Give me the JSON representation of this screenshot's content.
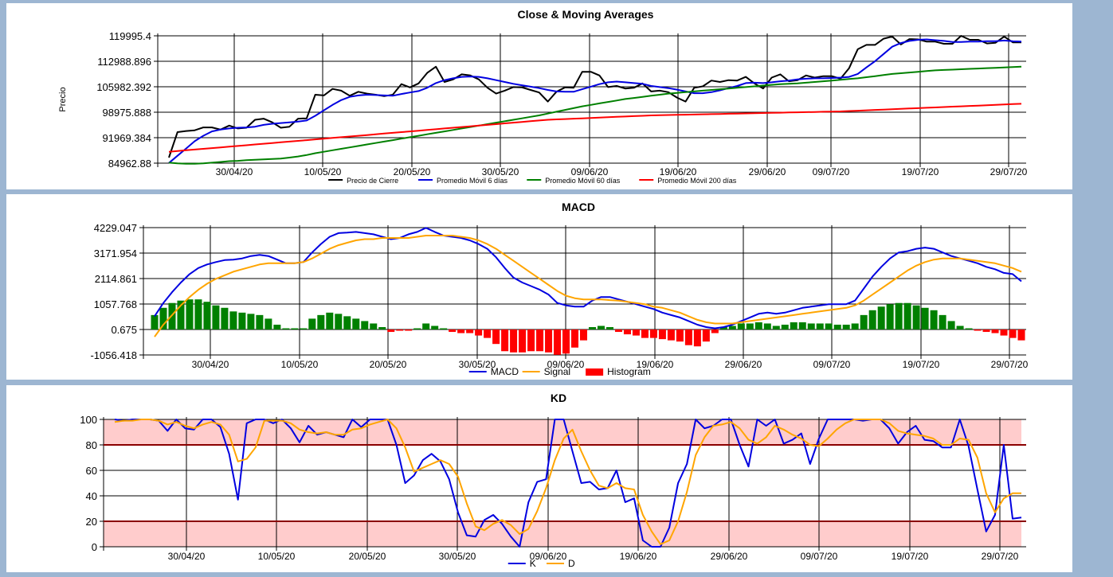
{
  "chart_data": [
    {
      "type": "line",
      "title": "Close &  Moving Averages",
      "ylabel": "Precio",
      "y_ticks": [
        "119995.4",
        "112988.896",
        "105982.392",
        "98975.888",
        "91969.384",
        "84962.88"
      ],
      "ylim": [
        84962.88,
        119995.4
      ],
      "x_ticks": [
        "30/04/20",
        "10/05/20",
        "20/05/20",
        "30/05/20",
        "09/06/20",
        "19/06/20",
        "29/06/20",
        "09/07/20",
        "19/07/20",
        "29/07/20"
      ],
      "legend_position": "bottom",
      "grid": true,
      "series": [
        {
          "name": "Precio de Cierre",
          "color": "#000000",
          "values": [
            86500,
            93500,
            93800,
            94000,
            94800,
            94800,
            94200,
            95300,
            94500,
            94700,
            96900,
            97200,
            96200,
            94700,
            95000,
            97200,
            97300,
            103800,
            103600,
            105400,
            104900,
            103500,
            104600,
            104100,
            103800,
            103400,
            103800,
            106700,
            105800,
            106900,
            109800,
            111500,
            107300,
            108000,
            109400,
            109100,
            108000,
            105700,
            104100,
            104900,
            105900,
            105800,
            105100,
            104400,
            101900,
            104600,
            105800,
            105700,
            110100,
            110100,
            109100,
            105900,
            106200,
            105500,
            105700,
            106900,
            104700,
            104900,
            104500,
            103000,
            101900,
            105700,
            106100,
            107700,
            107300,
            107800,
            107700,
            108700,
            106900,
            105500,
            108500,
            109400,
            107500,
            107800,
            109100,
            108500,
            108900,
            108900,
            108200,
            111100,
            116300,
            117500,
            117500,
            119200,
            119800,
            117600,
            119100,
            119000,
            118400,
            118400,
            117800,
            117800,
            120000,
            118900,
            118900,
            117900,
            118100,
            119800,
            118200,
            118200
          ]
        },
        {
          "name": "Promedio Móvil 6 días",
          "color": "#0000e0",
          "values": [
            85000,
            87000,
            89000,
            91000,
            92500,
            93700,
            94200,
            94500,
            94700,
            94800,
            95000,
            95500,
            95800,
            96000,
            96200,
            96400,
            96700,
            98000,
            99500,
            101000,
            102300,
            103200,
            103600,
            103800,
            103700,
            103600,
            103500,
            104000,
            104400,
            104800,
            105700,
            107000,
            107800,
            108300,
            108700,
            108800,
            108700,
            108300,
            107800,
            107300,
            106800,
            106400,
            106000,
            105600,
            105100,
            104700,
            104600,
            104600,
            105300,
            106000,
            106700,
            107200,
            107400,
            107200,
            107000,
            106800,
            106200,
            105900,
            105600,
            105200,
            104700,
            104200,
            104200,
            104500,
            105000,
            105600,
            106200,
            107000,
            107100,
            107000,
            107200,
            107500,
            107700,
            108000,
            108200,
            108300,
            108300,
            108400,
            108500,
            108700,
            109500,
            111300,
            113000,
            115000,
            117000,
            118000,
            118600,
            118900,
            119000,
            118800,
            118600,
            118300,
            118300,
            118400,
            118400,
            118500,
            118500,
            118700,
            118500,
            118400
          ]
        },
        {
          "name": "Promedio Móvil 60 días",
          "color": "#008000",
          "values": [
            85100,
            84900,
            84800,
            84800,
            84900,
            85100,
            85300,
            85500,
            85600,
            85800,
            85900,
            86000,
            86100,
            86200,
            86500,
            86800,
            87200,
            87700,
            88100,
            88500,
            88900,
            89300,
            89700,
            90100,
            90500,
            90900,
            91300,
            91700,
            92100,
            92500,
            92900,
            93300,
            93700,
            94100,
            94500,
            94900,
            95300,
            95700,
            96100,
            96500,
            96900,
            97300,
            97700,
            98100,
            98600,
            99100,
            99600,
            100100,
            100600,
            101000,
            101400,
            101800,
            102200,
            102600,
            102900,
            103200,
            103500,
            103800,
            104100,
            104300,
            104500,
            104700,
            104900,
            105100,
            105300,
            105500,
            105700,
            105900,
            106100,
            106300,
            106500,
            106700,
            106800,
            106900,
            107100,
            107300,
            107500,
            107700,
            107900,
            108100,
            108300,
            108600,
            108900,
            109200,
            109500,
            109700,
            109900,
            110100,
            110300,
            110500,
            110600,
            110700,
            110800,
            110900,
            111000,
            111100,
            111200,
            111300,
            111400,
            111500
          ]
        },
        {
          "name": "Promedio Móvil 200 días",
          "color": "#ff0000",
          "values": [
            88100,
            88300,
            88500,
            88700,
            88900,
            89100,
            89300,
            89500,
            89700,
            89900,
            90100,
            90300,
            90500,
            90700,
            90900,
            91100,
            91300,
            91500,
            91700,
            91900,
            92100,
            92300,
            92500,
            92700,
            92900,
            93100,
            93300,
            93500,
            93700,
            93900,
            94100,
            94300,
            94500,
            94700,
            94900,
            95100,
            95300,
            95500,
            95700,
            95900,
            96100,
            96300,
            96500,
            96700,
            96900,
            97000,
            97100,
            97200,
            97300,
            97400,
            97500,
            97600,
            97700,
            97800,
            97900,
            98000,
            98100,
            98150,
            98200,
            98250,
            98300,
            98350,
            98400,
            98450,
            98500,
            98550,
            98600,
            98650,
            98700,
            98750,
            98800,
            98850,
            98900,
            98950,
            99000,
            99050,
            99100,
            99150,
            99200,
            99300,
            99400,
            99500,
            99600,
            99700,
            99800,
            99900,
            100000,
            100100,
            100200,
            100300,
            100400,
            100500,
            100600,
            100700,
            100800,
            100900,
            101000,
            101100,
            101200,
            101300
          ]
        }
      ]
    },
    {
      "type": "line",
      "title": "MACD",
      "y_ticks": [
        "4229.047",
        "3171.954",
        "2114.861",
        "1057.768",
        "0.675",
        "-1056.418"
      ],
      "ylim": [
        -1056.418,
        4229.047
      ],
      "x_ticks": [
        "30/04/20",
        "10/05/20",
        "20/05/20",
        "30/05/20",
        "09/06/20",
        "19/06/20",
        "29/06/20",
        "09/07/20",
        "19/07/20",
        "29/07/20"
      ],
      "legend_position": "bottom",
      "grid": true,
      "series": [
        {
          "name": "MACD",
          "color": "#0000e0",
          "values": [
            550,
            1100,
            1550,
            1950,
            2300,
            2550,
            2700,
            2800,
            2880,
            2900,
            2950,
            3050,
            3100,
            3050,
            2900,
            2750,
            2750,
            2800,
            3200,
            3550,
            3850,
            4000,
            4020,
            4050,
            4000,
            3950,
            3850,
            3750,
            3800,
            3950,
            4050,
            4220,
            4050,
            3900,
            3850,
            3800,
            3700,
            3550,
            3350,
            3000,
            2550,
            2150,
            1950,
            1800,
            1650,
            1450,
            1100,
            1000,
            950,
            950,
            1200,
            1350,
            1350,
            1250,
            1150,
            1050,
            950,
            850,
            700,
            600,
            500,
            350,
            200,
            100,
            50,
            100,
            200,
            350,
            500,
            650,
            700,
            650,
            700,
            800,
            900,
            950,
            1000,
            1050,
            1050,
            1050,
            1200,
            1700,
            2200,
            2600,
            2950,
            3200,
            3250,
            3350,
            3400,
            3350,
            3200,
            3050,
            2950,
            2850,
            2750,
            2600,
            2500,
            2350,
            2300,
            2000
          ]
        },
        {
          "name": "Signal",
          "color": "#ffa500",
          "values": [
            -300,
            200,
            600,
            1000,
            1350,
            1650,
            1900,
            2100,
            2250,
            2400,
            2500,
            2600,
            2700,
            2750,
            2750,
            2750,
            2750,
            2800,
            2950,
            3150,
            3350,
            3500,
            3600,
            3700,
            3750,
            3750,
            3800,
            3800,
            3800,
            3800,
            3850,
            3900,
            3900,
            3900,
            3900,
            3850,
            3800,
            3700,
            3550,
            3350,
            3100,
            2850,
            2600,
            2350,
            2100,
            1850,
            1600,
            1400,
            1300,
            1250,
            1250,
            1250,
            1220,
            1200,
            1150,
            1100,
            1050,
            950,
            900,
            800,
            700,
            550,
            400,
            300,
            250,
            250,
            250,
            300,
            350,
            400,
            450,
            500,
            550,
            600,
            650,
            700,
            750,
            800,
            850,
            900,
            1000,
            1200,
            1450,
            1700,
            1950,
            2200,
            2450,
            2650,
            2800,
            2900,
            2950,
            2950,
            2950,
            2900,
            2850,
            2800,
            2750,
            2650,
            2550,
            2400
          ]
        },
        {
          "name": "Histogram",
          "color": "#ff0000",
          "positive_color": "#008000",
          "bar": true,
          "values": [
            600,
            900,
            1100,
            1200,
            1250,
            1250,
            1150,
            1000,
            900,
            750,
            700,
            650,
            600,
            450,
            200,
            50,
            50,
            50,
            450,
            600,
            700,
            650,
            550,
            450,
            350,
            250,
            100,
            -100,
            -50,
            -50,
            50,
            250,
            150,
            50,
            -100,
            -150,
            -150,
            -250,
            -350,
            -600,
            -900,
            -950,
            -950,
            -900,
            -900,
            -950,
            -1050,
            -1000,
            -750,
            -450,
            100,
            150,
            100,
            -100,
            -200,
            -250,
            -350,
            -350,
            -400,
            -450,
            -500,
            -650,
            -700,
            -500,
            -150,
            100,
            150,
            250,
            250,
            300,
            250,
            150,
            200,
            300,
            300,
            250,
            250,
            250,
            200,
            200,
            250,
            600,
            800,
            950,
            1050,
            1100,
            1100,
            1000,
            900,
            800,
            600,
            350,
            150,
            50,
            -50,
            -100,
            -150,
            -250,
            -350,
            -450
          ]
        }
      ]
    },
    {
      "type": "line",
      "title": "KD",
      "y_ticks": [
        "100",
        "80",
        "60",
        "40",
        "20",
        "0"
      ],
      "ylim": [
        0,
        100
      ],
      "bands": [
        {
          "from": 80,
          "to": 100,
          "color": "#ffcccc"
        },
        {
          "from": 0,
          "to": 20,
          "color": "#ffcccc"
        }
      ],
      "threshold_lines": [
        80,
        20
      ],
      "x_ticks": [
        "30/04/20",
        "10/05/20",
        "20/05/20",
        "30/05/20",
        "09/06/20",
        "19/06/20",
        "29/06/20",
        "09/07/20",
        "19/07/20",
        "29/07/20"
      ],
      "legend_position": "bottom",
      "grid": true,
      "series": [
        {
          "name": "K",
          "color": "#0000e0",
          "values": [
            100,
            99,
            100,
            100,
            100,
            99,
            91,
            100,
            93,
            92,
            100,
            100,
            94,
            73,
            37,
            97,
            100,
            100,
            97,
            100,
            93,
            82,
            95,
            88,
            90,
            88,
            86,
            100,
            94,
            100,
            100,
            100,
            80,
            50,
            56,
            68,
            73,
            67,
            53,
            27,
            9,
            8,
            21,
            25,
            18,
            8,
            0,
            35,
            51,
            53,
            100,
            100,
            75,
            50,
            51,
            45,
            46,
            60,
            35,
            38,
            5,
            0,
            0,
            15,
            50,
            65,
            100,
            93,
            95,
            100,
            100,
            80,
            63,
            100,
            95,
            100,
            81,
            84,
            89,
            65,
            85,
            100,
            100,
            100,
            100,
            99,
            100,
            100,
            93,
            81,
            90,
            95,
            84,
            83,
            78,
            78,
            100,
            79,
            45,
            12,
            25,
            80,
            22,
            23
          ]
        },
        {
          "name": "D",
          "color": "#ffa500",
          "values": [
            98,
            99,
            99,
            100,
            100,
            99,
            96,
            98,
            95,
            93,
            96,
            98,
            96,
            88,
            67,
            69,
            78,
            99,
            99,
            99,
            97,
            92,
            90,
            89,
            90,
            88,
            88,
            92,
            93,
            96,
            98,
            100,
            93,
            78,
            59,
            62,
            65,
            68,
            65,
            55,
            34,
            16,
            13,
            18,
            21,
            17,
            10,
            14,
            28,
            46,
            68,
            85,
            92,
            75,
            60,
            48,
            46,
            50,
            46,
            45,
            25,
            12,
            2,
            5,
            20,
            43,
            72,
            86,
            95,
            96,
            98,
            93,
            84,
            81,
            86,
            95,
            92,
            88,
            85,
            80,
            79,
            85,
            92,
            97,
            100,
            100,
            100,
            100,
            97,
            91,
            89,
            88,
            87,
            85,
            80,
            80,
            85,
            84,
            70,
            42,
            27,
            38,
            42,
            42
          ]
        }
      ]
    }
  ]
}
